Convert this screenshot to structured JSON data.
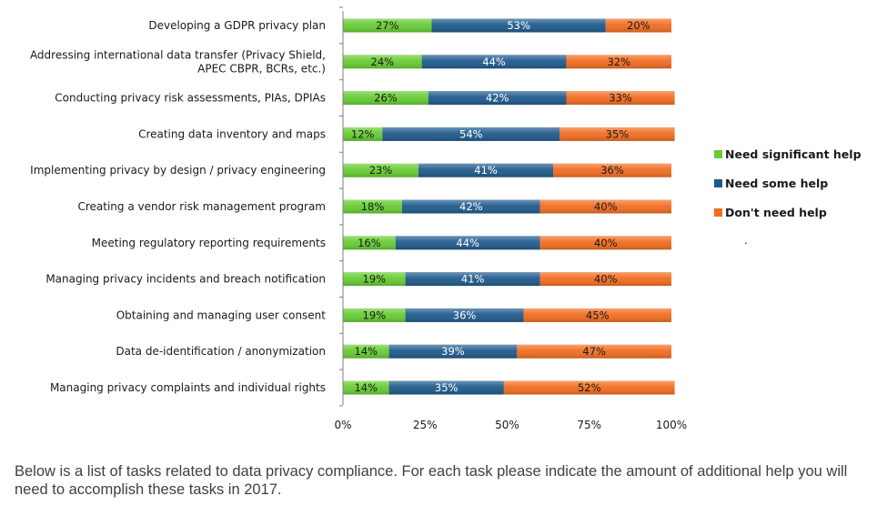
{
  "chart_data": {
    "type": "bar",
    "orientation": "horizontal",
    "stacked": true,
    "categories": [
      "Developing a GDPR privacy plan",
      "Addressing international data transfer (Privacy Shield, APEC CBPR, BCRs, etc.)",
      "Conducting privacy risk assessments, PIAs, DPIAs",
      "Creating  data inventory and maps",
      "Implementing privacy by design / privacy engineering",
      "Creating a vendor risk management program",
      "Meeting regulatory reporting requirements",
      "Managing privacy incidents and breach notification",
      "Obtaining and managing user consent",
      "Data de-identification / anonymization",
      "Managing privacy complaints and individual rights"
    ],
    "category_lines": [
      [
        "Developing a GDPR privacy plan"
      ],
      [
        "Addressing international data transfer (Privacy Shield,",
        "APEC CBPR, BCRs, etc.)"
      ],
      [
        "Conducting privacy risk assessments, PIAs, DPIAs"
      ],
      [
        "Creating  data inventory and maps"
      ],
      [
        "Implementing privacy by design / privacy engineering"
      ],
      [
        "Creating a vendor risk management program"
      ],
      [
        "Meeting regulatory reporting requirements"
      ],
      [
        "Managing privacy incidents and breach notification"
      ],
      [
        "Obtaining and managing user consent"
      ],
      [
        "Data de-identification / anonymization"
      ],
      [
        "Managing privacy complaints and individual rights"
      ]
    ],
    "series": [
      {
        "name": "Need significant help",
        "color": "#66cc33",
        "label_color": "#1a1a1a",
        "values": [
          27,
          24,
          26,
          12,
          23,
          18,
          16,
          19,
          19,
          14,
          14
        ]
      },
      {
        "name": "Need some help",
        "color": "#1f5a8c",
        "label_color": "#ffffff",
        "values": [
          53,
          44,
          42,
          54,
          41,
          42,
          44,
          41,
          36,
          39,
          35
        ]
      },
      {
        "name": "Don't need help",
        "color": "#f26d21",
        "label_color": "#1a1a1a",
        "values": [
          20,
          32,
          33,
          35,
          36,
          40,
          40,
          40,
          45,
          47,
          52
        ]
      }
    ],
    "xlim": [
      0,
      100
    ],
    "xticks": [
      "0%",
      "25%",
      "50%",
      "75%",
      "100%"
    ],
    "value_suffix": "%",
    "legend_position": "right",
    "legend_extra": ".",
    "grid": false
  },
  "caption": "Below is a list of tasks related to data privacy compliance. For each task please indicate the amount of additional help you will need to accomplish these tasks in 2017."
}
